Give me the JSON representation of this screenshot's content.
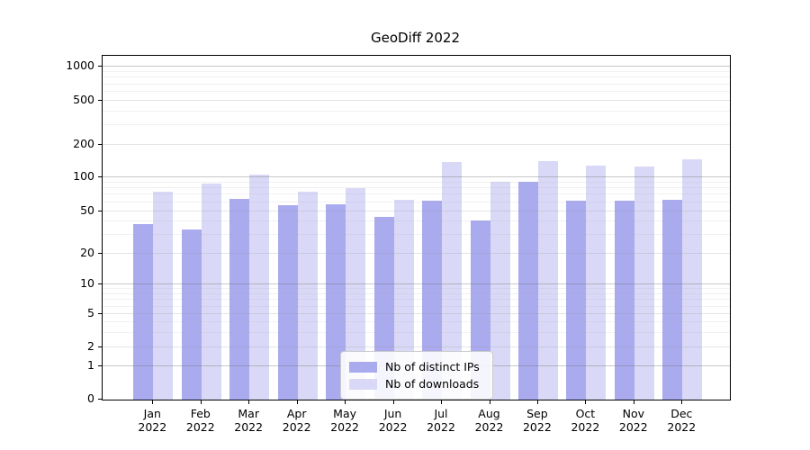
{
  "title": "GeoDiff 2022",
  "chart_data": {
    "type": "bar",
    "title": "GeoDiff 2022",
    "categories": [
      "Jan 2022",
      "Feb 2022",
      "Mar 2022",
      "Apr 2022",
      "May 2022",
      "Jun 2022",
      "Jul 2022",
      "Aug 2022",
      "Sep 2022",
      "Oct 2022",
      "Nov 2022",
      "Dec 2022"
    ],
    "x_tick_months": [
      "Jan",
      "Feb",
      "Mar",
      "Apr",
      "May",
      "Jun",
      "Jul",
      "Aug",
      "Sep",
      "Oct",
      "Nov",
      "Dec"
    ],
    "x_tick_year": "2022",
    "series": [
      {
        "name": "Nb of distinct IPs",
        "color": "#aaaaef",
        "values": [
          38,
          34,
          65,
          57,
          58,
          44,
          62,
          41,
          92,
          62,
          62,
          63
        ]
      },
      {
        "name": "Nb of downloads",
        "color": "#d9d9f7",
        "values": [
          74,
          88,
          105,
          75,
          80,
          63,
          138,
          92,
          141,
          129,
          126,
          148
        ]
      }
    ],
    "yscale": "symlog",
    "yticks": [
      0,
      1,
      2,
      5,
      10,
      20,
      50,
      100,
      200,
      500,
      1000
    ],
    "minor_gridline_values": [
      3,
      4,
      6,
      7,
      8,
      9,
      30,
      40,
      60,
      70,
      80,
      90,
      300,
      400,
      600,
      700,
      800,
      900
    ],
    "ylim": [
      0,
      1400
    ],
    "xlabel": "",
    "ylabel": "",
    "grid": true,
    "legend_position": "lower center"
  },
  "legend": {
    "items": [
      {
        "label": "Nb of distinct IPs",
        "color": "#aaaaef"
      },
      {
        "label": "Nb of downloads",
        "color": "#d9d9f7"
      }
    ]
  }
}
